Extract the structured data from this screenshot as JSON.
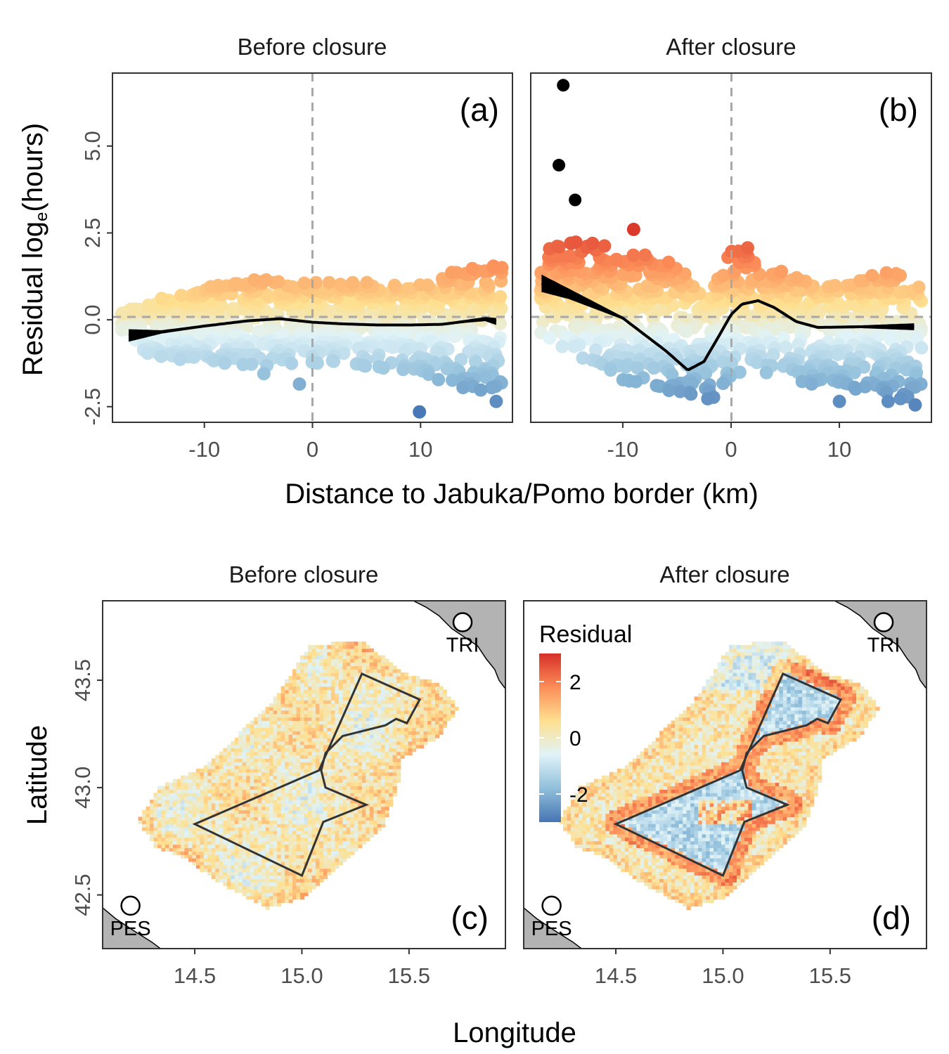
{
  "chart_data": [
    {
      "type": "scatter",
      "title": "Before closure",
      "panel_label": "(a)",
      "xlabel": "Distance to Jabuka/Pomo border (km)",
      "ylabel_prefix": "Residual log",
      "ylabel_sub": "e",
      "ylabel_suffix": "(hours)",
      "xlim": [
        -18.5,
        18.5
      ],
      "ylim": [
        -2.95,
        7.1
      ],
      "xticks": [
        -10,
        0,
        10
      ],
      "xtick_labels": [
        "-10",
        "0",
        "10"
      ],
      "yticks": [
        -2.5,
        0,
        2.5,
        5
      ],
      "ytick_labels": [
        "-2.5",
        "0.0",
        "2.5",
        "5.0"
      ],
      "reference_lines": {
        "x": 0,
        "y": 0
      },
      "colour_limits": [
        -2.7,
        2.7
      ],
      "outliers": [],
      "labelled_low_points": [
        [
          -4.5,
          -1.55
        ],
        [
          -1.2,
          -1.85
        ],
        [
          9.9,
          -2.65
        ],
        [
          17,
          -2.35
        ],
        [
          16,
          -1.65
        ]
      ],
      "trend": {
        "x": [
          -17,
          -14,
          -10,
          -6,
          -3,
          0,
          3,
          6,
          9,
          12,
          14,
          16,
          17
        ],
        "y": [
          -0.45,
          -0.35,
          -0.18,
          -0.03,
          0.03,
          -0.07,
          -0.12,
          -0.15,
          -0.15,
          -0.13,
          -0.05,
          0.02,
          -0.05
        ],
        "band": [
          0.18,
          0.05,
          0.03,
          0.03,
          0.03,
          0.03,
          0.03,
          0.03,
          0.03,
          0.03,
          0.04,
          0.06,
          0.1
        ]
      },
      "point_envelope": {
        "x": [
          -17.5,
          -15,
          -10,
          -5,
          0,
          5,
          10,
          14,
          17.5
        ],
        "upper": [
          0.2,
          0.55,
          0.95,
          1.2,
          1.1,
          1.1,
          1.0,
          1.5,
          1.7
        ],
        "lower": [
          -0.3,
          -1.1,
          -1.2,
          -1.35,
          -1.25,
          -1.4,
          -1.6,
          -2.0,
          -2.1
        ]
      }
    },
    {
      "type": "scatter",
      "title": "After closure",
      "panel_label": "(b)",
      "xlim": [
        -18.5,
        18.5
      ],
      "ylim": [
        -2.95,
        7.1
      ],
      "xticks": [
        -10,
        0,
        10
      ],
      "xtick_labels": [
        "-10",
        "0",
        "10"
      ],
      "reference_lines": {
        "x": 0,
        "y": 0
      },
      "colour_limits": [
        -2.7,
        2.7
      ],
      "outliers": [
        [
          -15.5,
          6.75
        ],
        [
          -15.9,
          4.45
        ],
        [
          -14.4,
          3.45
        ]
      ],
      "labelled_low_points": [
        [
          10,
          -2.35
        ],
        [
          14.5,
          -2.35
        ],
        [
          17,
          -2.45
        ],
        [
          -9,
          2.6
        ]
      ],
      "trend": {
        "x": [
          -17.5,
          -15,
          -10,
          -6,
          -4,
          -2.5,
          -1,
          0,
          1,
          2.5,
          4,
          6,
          8,
          12,
          17
        ],
        "y": [
          1.05,
          0.75,
          0.05,
          -0.9,
          -1.45,
          -1.2,
          -0.4,
          0.15,
          0.45,
          0.55,
          0.35,
          -0.05,
          -0.22,
          -0.2,
          -0.2
        ],
        "band": [
          0.25,
          0.15,
          0.04,
          0.03,
          0.03,
          0.03,
          0.04,
          0.04,
          0.04,
          0.03,
          0.03,
          0.03,
          0.03,
          0.04,
          0.1
        ]
      },
      "point_envelope": {
        "x": [
          -17.5,
          -15,
          -10,
          -5,
          -2,
          0,
          2,
          5,
          10,
          14,
          17.5
        ],
        "upper": [
          2.0,
          2.3,
          2.2,
          1.6,
          0.6,
          2.3,
          2.0,
          1.3,
          0.95,
          1.5,
          1.0
        ],
        "lower": [
          -0.4,
          -0.9,
          -1.8,
          -2.3,
          -2.3,
          -2.0,
          -1.4,
          -1.8,
          -2.0,
          -2.2,
          -2.4
        ]
      }
    },
    {
      "type": "heatmap",
      "title": "Before closure",
      "panel_label": "(c)",
      "xlabel": "Longitude",
      "ylabel": "Latitude",
      "xlim": [
        14.07,
        15.95
      ],
      "ylim": [
        42.25,
        43.87
      ],
      "xticks": [
        14.5,
        15.0,
        15.5
      ],
      "xtick_labels": [
        "14.5",
        "15.0",
        "15.5"
      ],
      "yticks": [
        42.5,
        43.0,
        43.5
      ],
      "ytick_labels": [
        "42.5",
        "43.0",
        "43.5"
      ],
      "ports": [
        {
          "label": "PES",
          "lon": 14.2,
          "lat": 42.45
        },
        {
          "label": "TRI",
          "lon": 15.75,
          "lat": 43.77
        }
      ],
      "closure_polygon": [
        [
          14.5,
          42.83
        ],
        [
          15.08,
          43.08
        ],
        [
          15.28,
          43.53
        ],
        [
          15.55,
          43.41
        ],
        [
          15.49,
          43.3
        ],
        [
          15.44,
          43.32
        ],
        [
          15.39,
          43.29
        ],
        [
          15.19,
          43.24
        ],
        [
          15.11,
          43.16
        ],
        [
          15.09,
          43.08
        ],
        [
          15.11,
          43.0
        ],
        [
          15.3,
          42.92
        ],
        [
          15.1,
          42.84
        ],
        [
          15.0,
          42.59
        ]
      ],
      "fished_area_polygon": [
        [
          14.23,
          42.84
        ],
        [
          14.32,
          42.99
        ],
        [
          14.55,
          43.1
        ],
        [
          14.86,
          43.4
        ],
        [
          15.03,
          43.66
        ],
        [
          15.28,
          43.67
        ],
        [
          15.46,
          43.53
        ],
        [
          15.63,
          43.48
        ],
        [
          15.72,
          43.36
        ],
        [
          15.63,
          43.23
        ],
        [
          15.45,
          43.12
        ],
        [
          15.44,
          42.99
        ],
        [
          15.37,
          42.8
        ],
        [
          15.25,
          42.7
        ],
        [
          15.0,
          42.48
        ],
        [
          14.83,
          42.43
        ],
        [
          14.62,
          42.54
        ],
        [
          14.45,
          42.66
        ],
        [
          14.3,
          42.72
        ]
      ],
      "pattern": "mixed"
    },
    {
      "type": "heatmap",
      "title": "After closure",
      "panel_label": "(d)",
      "xlim": [
        14.07,
        15.95
      ],
      "ylim": [
        42.25,
        43.87
      ],
      "xticks": [
        14.5,
        15.0,
        15.5
      ],
      "xtick_labels": [
        "14.5",
        "15.0",
        "15.5"
      ],
      "ports": [
        {
          "label": "PES",
          "lon": 14.2,
          "lat": 42.45
        },
        {
          "label": "TRI",
          "lon": 15.75,
          "lat": 43.77
        }
      ],
      "pattern": "closed-area-negative",
      "legend": {
        "title": "Residual",
        "ticks": [
          2,
          0,
          -2
        ],
        "tick_labels": [
          "2",
          "0",
          "-2"
        ],
        "limits": [
          -3,
          3
        ]
      }
    }
  ],
  "palette": [
    "#4575b4",
    "#91bfdb",
    "#e0f3f8",
    "#fee090",
    "#fc8d59",
    "#d73027"
  ],
  "colors": {
    "outlier": "#000000",
    "land": "#b3b3b3",
    "reference_line": "#a8a8a8",
    "panel_border": "#333333"
  }
}
